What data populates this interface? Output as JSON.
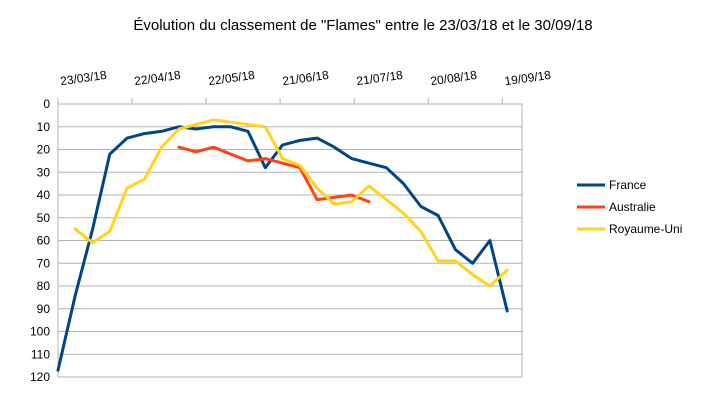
{
  "chart_data": {
    "type": "line",
    "title": "Évolution du classement de \"Flames\" entre le 23/03/18 et le 30/09/18",
    "xlabel": "",
    "ylabel": "",
    "x_start": "2018-03-23",
    "x_end": "2018-09-27",
    "x_tick_labels": [
      "23/03/18",
      "22/04/18",
      "22/05/18",
      "21/06/18",
      "21/07/18",
      "20/08/18",
      "19/09/18"
    ],
    "ylim": [
      0,
      120
    ],
    "y_inverted": true,
    "y_ticks": [
      0,
      10,
      20,
      30,
      40,
      50,
      60,
      70,
      80,
      90,
      100,
      110,
      120
    ],
    "grid": "horizontal",
    "legend_position": "right",
    "series": [
      {
        "name": "France",
        "color": "#004586",
        "points": [
          [
            "2018-03-23",
            117
          ],
          [
            "2018-03-30",
            84
          ],
          [
            "2018-04-06",
            55
          ],
          [
            "2018-04-13",
            22
          ],
          [
            "2018-04-20",
            15
          ],
          [
            "2018-04-27",
            13
          ],
          [
            "2018-05-04",
            12
          ],
          [
            "2018-05-11",
            10
          ],
          [
            "2018-05-18",
            11
          ],
          [
            "2018-05-25",
            10
          ],
          [
            "2018-06-01",
            10
          ],
          [
            "2018-06-08",
            12
          ],
          [
            "2018-06-15",
            28
          ],
          [
            "2018-06-22",
            18
          ],
          [
            "2018-06-29",
            16
          ],
          [
            "2018-07-06",
            15
          ],
          [
            "2018-07-13",
            19
          ],
          [
            "2018-07-20",
            24
          ],
          [
            "2018-07-27",
            26
          ],
          [
            "2018-08-03",
            28
          ],
          [
            "2018-08-10",
            35
          ],
          [
            "2018-08-17",
            45
          ],
          [
            "2018-08-24",
            49
          ],
          [
            "2018-08-31",
            64
          ],
          [
            "2018-09-07",
            70
          ],
          [
            "2018-09-14",
            60
          ],
          [
            "2018-09-21",
            91
          ]
        ]
      },
      {
        "name": "Australie",
        "color": "#ff420e",
        "points": [
          [
            "2018-05-11",
            19
          ],
          [
            "2018-05-18",
            21
          ],
          [
            "2018-05-25",
            19
          ],
          [
            "2018-06-01",
            22
          ],
          [
            "2018-06-08",
            25
          ],
          [
            "2018-06-15",
            24
          ],
          [
            "2018-06-22",
            26
          ],
          [
            "2018-06-29",
            28
          ],
          [
            "2018-07-06",
            42
          ],
          [
            "2018-07-13",
            41
          ],
          [
            "2018-07-20",
            40
          ],
          [
            "2018-07-27",
            43
          ]
        ]
      },
      {
        "name": "Royaume-Uni",
        "color": "#ffd320",
        "points": [
          [
            "2018-03-30",
            55
          ],
          [
            "2018-04-06",
            61
          ],
          [
            "2018-04-13",
            56
          ],
          [
            "2018-04-20",
            37
          ],
          [
            "2018-04-27",
            33
          ],
          [
            "2018-05-04",
            19
          ],
          [
            "2018-05-11",
            11
          ],
          [
            "2018-05-18",
            9
          ],
          [
            "2018-05-25",
            7
          ],
          [
            "2018-06-01",
            8
          ],
          [
            "2018-06-08",
            9
          ],
          [
            "2018-06-15",
            10
          ],
          [
            "2018-06-22",
            24
          ],
          [
            "2018-06-29",
            27
          ],
          [
            "2018-07-06",
            37
          ],
          [
            "2018-07-13",
            44
          ],
          [
            "2018-07-20",
            43
          ],
          [
            "2018-07-27",
            36
          ],
          [
            "2018-08-03",
            42
          ],
          [
            "2018-08-10",
            48
          ],
          [
            "2018-08-17",
            56
          ],
          [
            "2018-08-24",
            69
          ],
          [
            "2018-08-31",
            69
          ],
          [
            "2018-09-07",
            75
          ],
          [
            "2018-09-14",
            80
          ],
          [
            "2018-09-21",
            73
          ]
        ]
      }
    ]
  }
}
